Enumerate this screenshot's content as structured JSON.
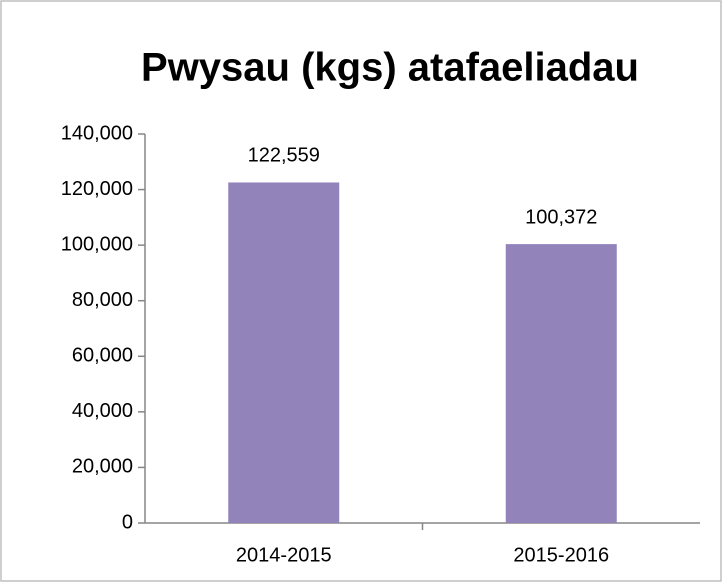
{
  "chart_data": {
    "type": "bar",
    "title": "Pwysau (kgs) atafaeliadau",
    "categories": [
      "2014-2015",
      "2015-2016"
    ],
    "values": [
      122559,
      100372
    ],
    "value_labels": [
      "122,559",
      "100,372"
    ],
    "color": "#9283bb",
    "ylim": [
      0,
      140000
    ],
    "yticks": [
      0,
      {
        "value": 20000,
        "label": "20,000"
      },
      {
        "value": 40000,
        "label": "40,000"
      },
      {
        "value": 60000,
        "label": "60,000"
      },
      {
        "value": 80000,
        "label": "80,000"
      },
      {
        "value": 100000,
        "label": "100,000"
      },
      {
        "value": 120000,
        "label": "120,000"
      },
      {
        "value": 140000,
        "label": "140,000"
      }
    ],
    "grid": false
  }
}
